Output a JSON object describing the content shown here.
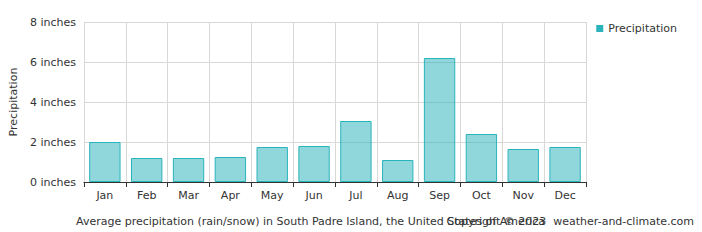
{
  "chart_data": {
    "type": "bar",
    "title": "Average precipitation (rain/snow) in South Padre Island, the United States of America",
    "source": "Copyright © 2023  weather-and-climate.com",
    "y_label": "Precipitation",
    "categories": [
      "Jan",
      "Feb",
      "Mar",
      "Apr",
      "May",
      "Jun",
      "Jul",
      "Aug",
      "Sep",
      "Oct",
      "Nov",
      "Dec"
    ],
    "series": [
      {
        "name": "Precipitation",
        "color": "#2bb3bb",
        "values": [
          2.0,
          1.2,
          1.2,
          1.25,
          1.75,
          1.8,
          3.05,
          1.1,
          6.2,
          2.4,
          1.65,
          1.75
        ]
      }
    ],
    "ylim": [
      0,
      8
    ],
    "yticks": [
      {
        "value": 0,
        "label": "0 inches"
      },
      {
        "value": 2,
        "label": "2 inches"
      },
      {
        "value": 4,
        "label": "4 inches"
      },
      {
        "value": 6,
        "label": "6 inches"
      },
      {
        "value": 8,
        "label": "8 inches"
      }
    ],
    "grid": true,
    "legend": "top-right"
  }
}
